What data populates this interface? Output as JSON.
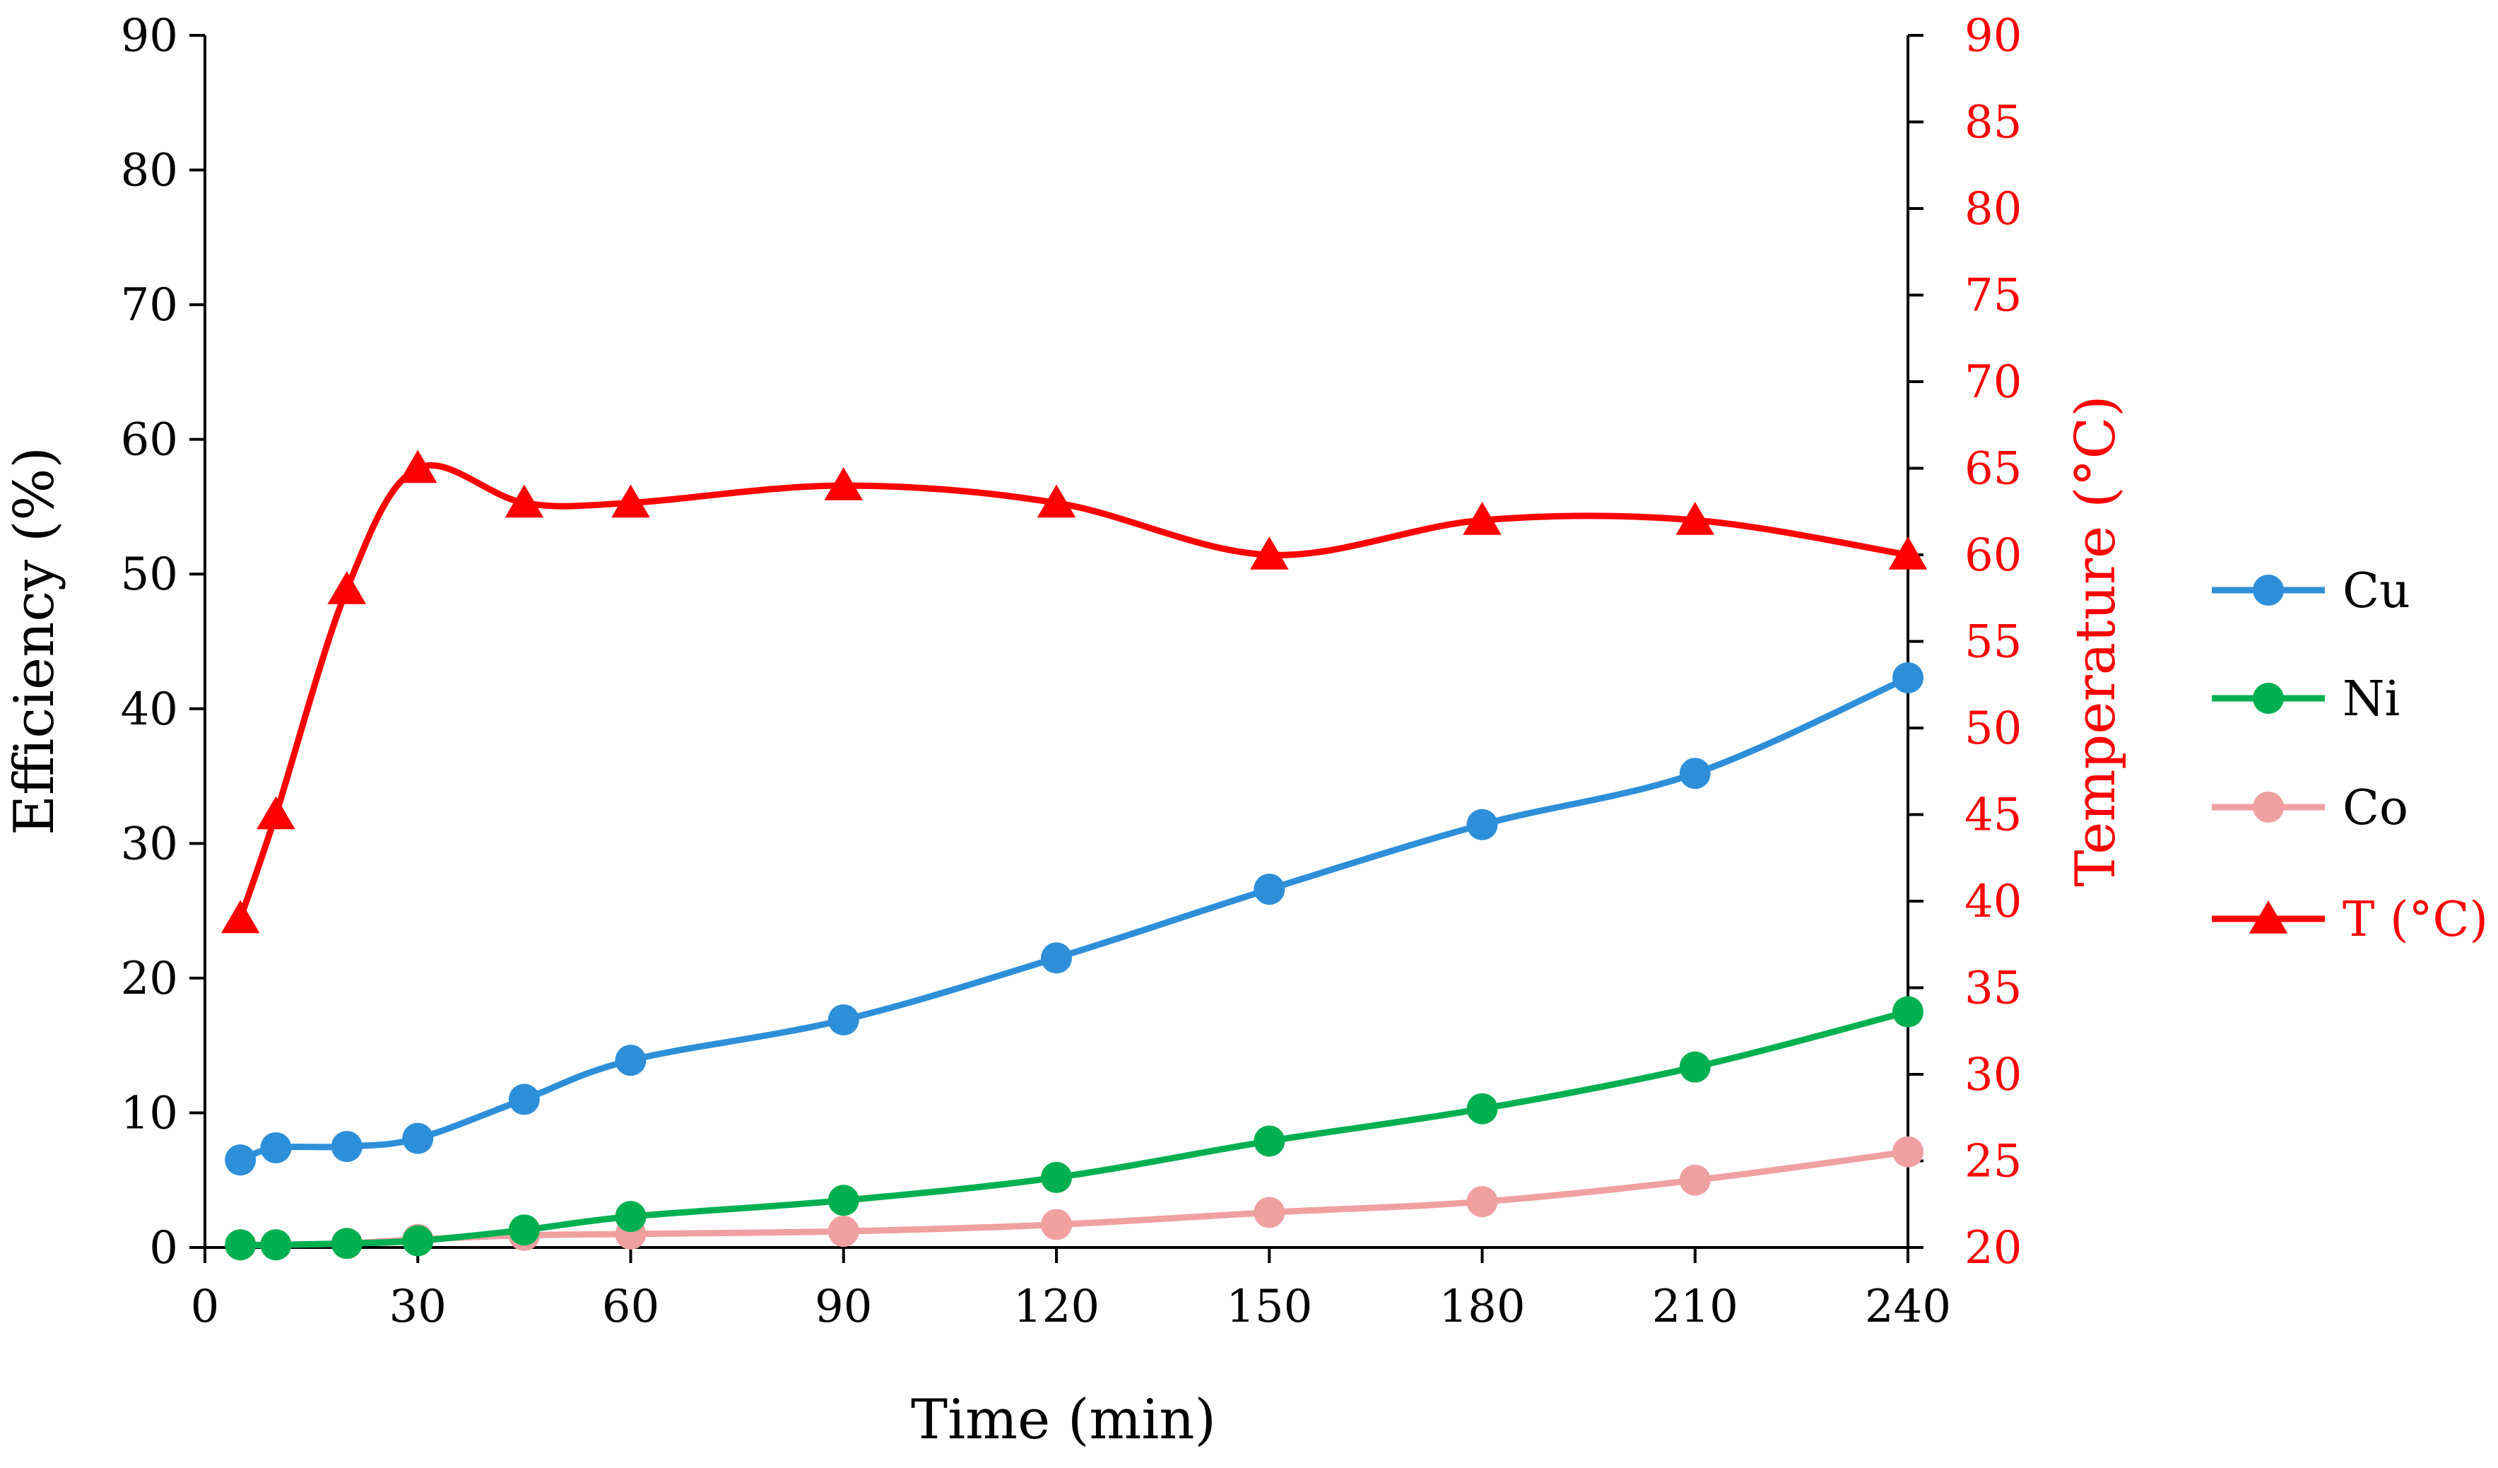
{
  "chart_data": {
    "type": "line",
    "xlabel": "Time (min)",
    "ylabel_left": "Efficiency (%)",
    "ylabel_right": "Temperature (°C)",
    "xlim": [
      0,
      240
    ],
    "xticks": [
      "0",
      "30",
      "60",
      "90",
      "120",
      "150",
      "180",
      "210",
      "240"
    ],
    "ylim_left": [
      0,
      90
    ],
    "yticks_left": [
      "0",
      "10",
      "20",
      "30",
      "40",
      "50",
      "60",
      "70",
      "80",
      "90"
    ],
    "ylim_right": [
      20,
      90
    ],
    "yticks_right": [
      "20",
      "25",
      "30",
      "35",
      "40",
      "45",
      "50",
      "55",
      "60",
      "65",
      "70",
      "75",
      "80",
      "85",
      "90"
    ],
    "x": [
      5,
      10,
      20,
      30,
      45,
      60,
      90,
      120,
      150,
      180,
      210,
      240
    ],
    "series": [
      {
        "name": "Cu",
        "axis": "left",
        "color": "#2E8FD9",
        "marker": "circle",
        "values": [
          6.5,
          7.4,
          7.5,
          8.1,
          11.0,
          13.9,
          16.9,
          21.5,
          26.6,
          31.4,
          35.2,
          42.3
        ]
      },
      {
        "name": "Ni",
        "axis": "left",
        "color": "#00B050",
        "marker": "circle",
        "values": [
          0.2,
          0.2,
          0.3,
          0.5,
          1.3,
          2.3,
          3.5,
          5.2,
          7.9,
          10.3,
          13.4,
          17.5
        ]
      },
      {
        "name": "Co",
        "axis": "left",
        "color": "#F0A0A0",
        "marker": "circle",
        "values": [
          0.2,
          0.2,
          0.3,
          0.6,
          0.9,
          1.0,
          1.2,
          1.7,
          2.6,
          3.4,
          5.0,
          7.1
        ]
      },
      {
        "name": "T (°C)",
        "axis": "right",
        "color": "#FF0000",
        "marker": "triangle",
        "values": [
          39,
          45,
          58,
          65,
          63,
          63,
          64,
          63,
          60,
          62,
          62,
          60
        ]
      }
    ]
  }
}
